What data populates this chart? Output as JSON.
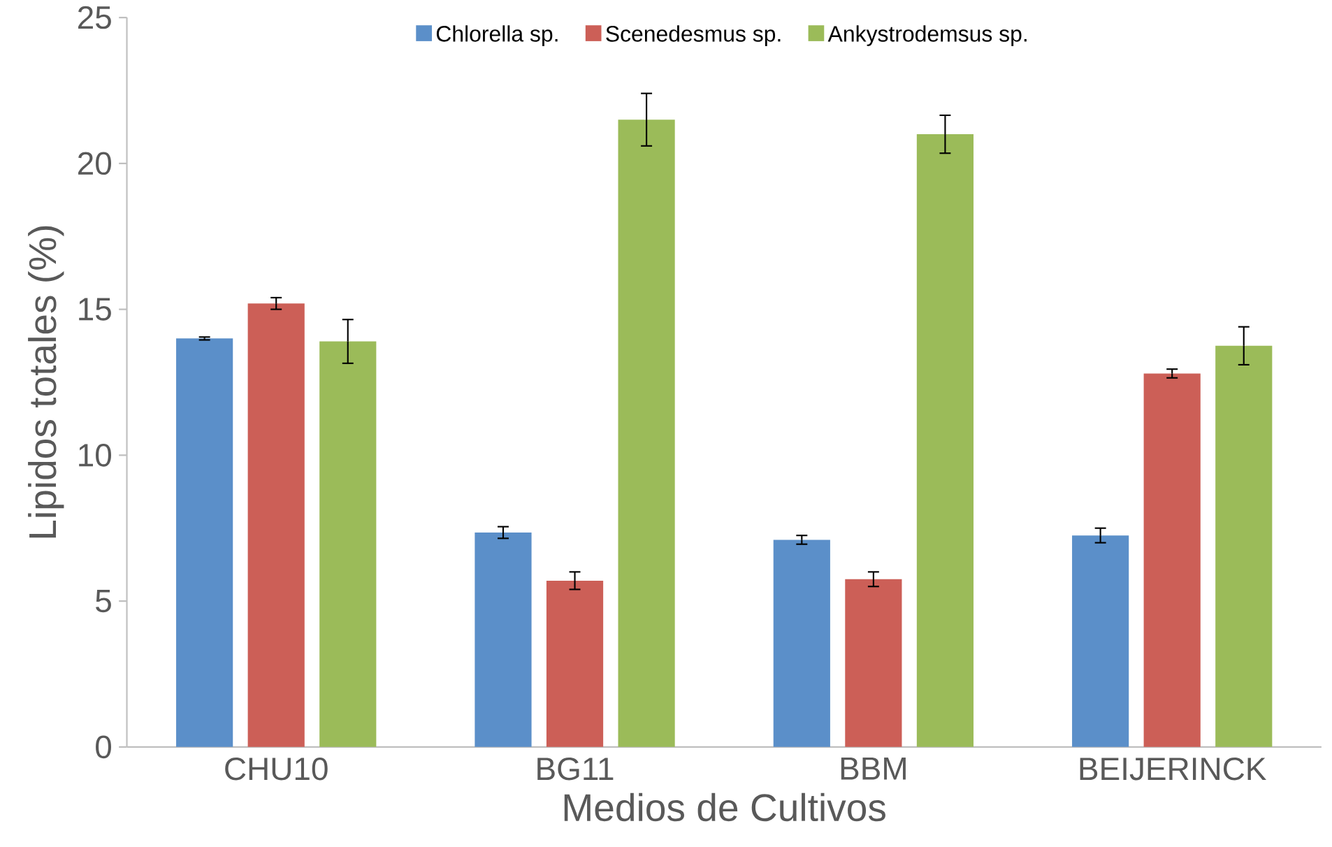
{
  "chart_data": {
    "type": "bar",
    "xlabel": "Medios de Cultivos",
    "ylabel": "Lipidos totales (%)",
    "categories": [
      "CHU10",
      "BG11",
      "BBM",
      "BEIJERINCK"
    ],
    "series": [
      {
        "name": "Chlorella sp.",
        "color": "#5b8fc9",
        "values": [
          14.0,
          7.35,
          7.1,
          7.25
        ],
        "errors": [
          0.05,
          0.2,
          0.15,
          0.25
        ]
      },
      {
        "name": "Scenedesmus sp.",
        "color": "#cc5f57",
        "values": [
          15.2,
          5.7,
          5.75,
          12.8
        ],
        "errors": [
          0.2,
          0.3,
          0.25,
          0.15
        ]
      },
      {
        "name": "Ankystrodemsus sp.",
        "color": "#9bbb59",
        "values": [
          13.9,
          21.5,
          21.0,
          13.75
        ],
        "errors": [
          0.75,
          0.9,
          0.65,
          0.65
        ]
      }
    ],
    "ylim": [
      0,
      25
    ],
    "yticks": [
      0,
      5,
      10,
      15,
      20,
      25
    ],
    "grid": false,
    "legend": "top"
  }
}
